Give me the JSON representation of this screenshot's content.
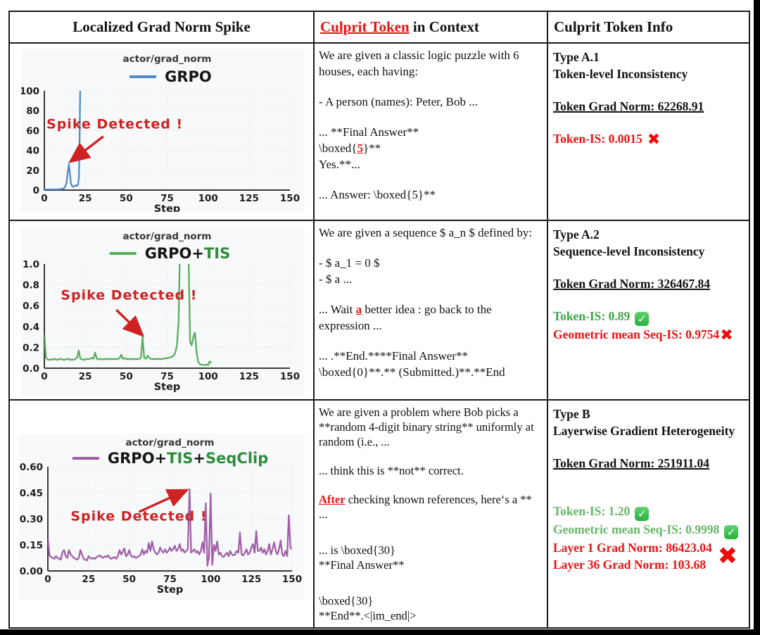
{
  "header": {
    "col1": "Localized Grad Norm Spike",
    "col2_highlight": "Culprit Token",
    "col2_rest": " in Context",
    "col3": "Culprit Token Info"
  },
  "colors": {
    "culprit_red": "#e81515",
    "info_red": "#ee1111",
    "info_green": "#3da44a",
    "info_green_light": "#67b667",
    "annotation_red": "#cf2222",
    "check_green": "#24b33b",
    "chart_bg": "#f8f9fb",
    "grid": "#dcdee3",
    "spine": "#3a3a3a",
    "blue_line": "#4f8bc9",
    "green_line": "#55b05a",
    "purple_line": "#a05fa8",
    "legend_green_text": "#2e8b3a"
  },
  "chart_data": [
    {
      "type": "line",
      "title": "actor/grad_norm",
      "xlabel": "Step",
      "xlim": [
        0,
        150
      ],
      "ylim": [
        0,
        100
      ],
      "xticks": [
        0,
        25,
        50,
        75,
        100,
        125,
        150
      ],
      "ytick_labels": [
        "0",
        "20",
        "40",
        "60",
        "80",
        "100"
      ],
      "yticks": [
        0,
        20,
        40,
        60,
        80,
        100
      ],
      "grid": true,
      "legend_position": "top-center",
      "line_color": "#4f8bc9",
      "legend": [
        {
          "t": "GRPO",
          "c": "#161616"
        }
      ],
      "x": [
        0,
        2,
        4,
        6,
        8,
        10,
        11,
        12,
        12.8,
        13.6,
        14.3,
        15,
        15.6,
        16.2,
        17,
        17.8,
        18.6,
        19.3,
        20,
        20.6,
        21.1,
        21.5,
        21.9,
        22.3
      ],
      "y": [
        0.6,
        0.6,
        0.6,
        0.7,
        0.8,
        1.0,
        1.3,
        2.0,
        3.5,
        8,
        18,
        26,
        17,
        7,
        3.8,
        3.2,
        4.2,
        5.0,
        4.2,
        5.5,
        12,
        45,
        105,
        106
      ],
      "annotation": {
        "text": "Spike Detected !",
        "text_x": 1.3,
        "text_y": 62,
        "arrow": {
          "x1": 36,
          "y1": 54,
          "x2": 17,
          "y2": 30
        }
      }
    },
    {
      "type": "line",
      "title": "actor/grad_norm",
      "xlabel": "Step",
      "xlim": [
        0,
        150
      ],
      "ylim": [
        0,
        1.0
      ],
      "xticks": [
        0,
        25,
        50,
        75,
        100,
        125,
        150
      ],
      "ytick_labels": [
        "0.0",
        "0.2",
        "0.4",
        "0.6",
        "0.8",
        "1.0"
      ],
      "yticks": [
        0,
        0.2,
        0.4,
        0.6,
        0.8,
        1.0
      ],
      "grid": true,
      "legend_position": "top-center",
      "line_color": "#55b05a",
      "legend": [
        {
          "t": "GRPO+",
          "c": "#161616"
        },
        {
          "t": "TIS",
          "c": "#2e8b3a"
        }
      ],
      "x_range": [
        0,
        102
      ],
      "y": [
        0.32,
        0.1,
        0.085,
        0.08,
        0.085,
        0.08,
        0.09,
        0.085,
        0.08,
        0.085,
        0.09,
        0.085,
        0.08,
        0.085,
        0.09,
        0.085,
        0.08,
        0.085,
        0.08,
        0.09,
        0.1,
        0.17,
        0.09,
        0.085,
        0.08,
        0.085,
        0.09,
        0.085,
        0.09,
        0.1,
        0.09,
        0.15,
        0.09,
        0.085,
        0.09,
        0.085,
        0.085,
        0.09,
        0.085,
        0.09,
        0.085,
        0.09,
        0.085,
        0.09,
        0.085,
        0.09,
        0.095,
        0.13,
        0.09,
        0.095,
        0.09,
        0.085,
        0.09,
        0.085,
        0.09,
        0.085,
        0.09,
        0.085,
        0.09,
        0.1,
        0.3,
        0.1,
        0.09,
        0.12,
        0.1,
        0.09,
        0.085,
        0.09,
        0.085,
        0.09,
        0.09,
        0.085,
        0.09,
        0.09,
        0.095,
        0.095,
        0.1,
        0.105,
        0.11,
        0.12,
        0.15,
        0.22,
        0.45,
        1.3,
        1.5,
        1.5,
        1.45,
        1.4,
        1.2,
        0.25,
        0.22,
        0.3,
        0.34,
        0.15,
        0.06,
        0.04,
        0.035,
        0.03,
        0.03,
        0.035,
        0.03,
        0.065,
        0.05
      ],
      "annotation": {
        "text": "Spike Detected !",
        "text_x": 10,
        "text_y": 0.66,
        "arrow": {
          "x1": 44,
          "y1": 0.56,
          "x2": 59,
          "y2": 0.33
        }
      }
    },
    {
      "type": "line",
      "title": "actor/grad_norm",
      "xlabel": "Step",
      "xlim": [
        0,
        150
      ],
      "ylim": [
        0,
        0.6
      ],
      "xticks": [
        0,
        25,
        50,
        75,
        100,
        125,
        150
      ],
      "ytick_labels": [
        "0.00",
        "0.15",
        "0.30",
        "0.45",
        "0.60"
      ],
      "yticks": [
        0,
        0.15,
        0.3,
        0.45,
        0.6
      ],
      "grid": true,
      "legend_position": "top-center",
      "line_color": "#a05fa8",
      "legend": [
        {
          "t": "GRPO+",
          "c": "#161616"
        },
        {
          "t": "TIS",
          "c": "#2e8b3a"
        },
        {
          "t": "+",
          "c": "#161616"
        },
        {
          "t": "SeqClip",
          "c": "#2e8b3a"
        }
      ],
      "x_range": [
        0,
        150
      ],
      "y": [
        0.19,
        0.09,
        0.08,
        0.075,
        0.07,
        0.085,
        0.075,
        0.07,
        0.065,
        0.11,
        0.12,
        0.085,
        0.075,
        0.12,
        0.095,
        0.085,
        0.075,
        0.07,
        0.065,
        0.075,
        0.12,
        0.095,
        0.07,
        0.065,
        0.06,
        0.085,
        0.075,
        0.07,
        0.075,
        0.07,
        0.08,
        0.085,
        0.09,
        0.08,
        0.075,
        0.085,
        0.08,
        0.09,
        0.075,
        0.07,
        0.075,
        0.08,
        0.07,
        0.085,
        0.12,
        0.095,
        0.11,
        0.13,
        0.085,
        0.095,
        0.12,
        0.09,
        0.08,
        0.085,
        0.075,
        0.08,
        0.085,
        0.095,
        0.125,
        0.095,
        0.115,
        0.105,
        0.16,
        0.115,
        0.17,
        0.125,
        0.105,
        0.095,
        0.105,
        0.135,
        0.115,
        0.105,
        0.125,
        0.105,
        0.115,
        0.135,
        0.115,
        0.125,
        0.145,
        0.115,
        0.125,
        0.155,
        0.115,
        0.125,
        0.105,
        0.115,
        0.125,
        0.47,
        0.105,
        0.115,
        0.125,
        0.105,
        0.115,
        0.095,
        0.115,
        0.165,
        0.105,
        0.39,
        0.03,
        0.08,
        0.445,
        0.035,
        0.15,
        0.115,
        0.17,
        0.095,
        0.105,
        0.085,
        0.08,
        0.095,
        0.105,
        0.085,
        0.115,
        0.095,
        0.09,
        0.095,
        0.115,
        0.105,
        0.22,
        0.095,
        0.09,
        0.105,
        0.125,
        0.095,
        0.105,
        0.135,
        0.155,
        0.105,
        0.23,
        0.115,
        0.115,
        0.135,
        0.105,
        0.125,
        0.095,
        0.115,
        0.155,
        0.095,
        0.125,
        0.165,
        0.115,
        0.095,
        0.125,
        0.175,
        0.095,
        0.085,
        0.115,
        0.085,
        0.32,
        0.135,
        0.125
      ],
      "annotation": {
        "text": "Spike Detected !",
        "text_x": 14,
        "text_y": 0.29,
        "arrow": {
          "x1": 56,
          "y1": 0.34,
          "x2": 84,
          "y2": 0.46
        }
      }
    }
  ],
  "rows": [
    {
      "context": [
        {
          "seg": [
            {
              "t": "We are given a classic logic puzzle with 6 houses, each having:"
            }
          ]
        },
        {
          "blank": true
        },
        {
          "seg": [
            {
              "t": "- A person (names): Peter, Bob ..."
            }
          ]
        },
        {
          "blank": true
        },
        {
          "seg": [
            {
              "t": "... **Final Answer**"
            }
          ]
        },
        {
          "seg": [
            {
              "t": "\\boxed{"
            },
            {
              "t": "5",
              "c": true
            },
            {
              "t": "}**"
            }
          ]
        },
        {
          "seg": [
            {
              "t": "Yes.**..."
            }
          ]
        },
        {
          "blank": true
        },
        {
          "seg": [
            {
              "t": "... Answer: \\boxed{5}**"
            }
          ]
        }
      ],
      "info": [
        {
          "t": "Type A.1",
          "s": "black"
        },
        {
          "t": "Token-level Inconsistency",
          "s": "black"
        },
        {
          "blank": true
        },
        {
          "t": "Token Grad Norm: 62268.91",
          "s": "ul"
        },
        {
          "blank": true
        },
        {
          "t": "Token-IS: 0.0015",
          "s": "red",
          "icon": "cross"
        }
      ]
    },
    {
      "context": [
        {
          "seg": [
            {
              "t": "We are given a sequence $ a_n $ defined by:"
            }
          ]
        },
        {
          "blank": true
        },
        {
          "seg": [
            {
              "t": "- $ a_1 = 0 $"
            }
          ]
        },
        {
          "seg": [
            {
              "t": "- $ a ..."
            }
          ]
        },
        {
          "blank": true
        },
        {
          "seg": [
            {
              "t": "... Wait "
            },
            {
              "t": "a",
              "c": true
            },
            {
              "t": " better idea : go back to the expression ..."
            }
          ]
        },
        {
          "blank": true
        },
        {
          "seg": [
            {
              "t": "... .**End.****Final Answer**"
            }
          ]
        },
        {
          "seg": [
            {
              "t": "\\boxed{0}**.** (Submitted.)**.**End"
            }
          ]
        }
      ],
      "info": [
        {
          "t": "Type A.2",
          "s": "black"
        },
        {
          "t": "Sequence-level Inconsistency",
          "s": "black"
        },
        {
          "blank": true
        },
        {
          "t": "Token Grad Norm: 326467.84",
          "s": "ul"
        },
        {
          "blank": true
        },
        {
          "t": "Token-IS: 0.89",
          "s": "green",
          "icon": "check"
        },
        {
          "t": "Geometric mean Seq-IS: 0.9754",
          "s": "red",
          "icon": "cross",
          "tight": true
        }
      ]
    },
    {
      "context": [
        {
          "seg": [
            {
              "t": "We are given a problem where Bob picks a **random 4-digit binary string** uniformly at random (i.e., ..."
            }
          ]
        },
        {
          "blank": true
        },
        {
          "seg": [
            {
              "t": "... think this is **not** correct."
            }
          ]
        },
        {
          "blank": true
        },
        {
          "seg": [
            {
              "t": "After",
              "c": true
            },
            {
              "t": " checking known references, here‘s a ** ..."
            }
          ]
        },
        {
          "blank": true
        },
        {
          "blank": "half"
        },
        {
          "seg": [
            {
              "t": "...  is \\boxed{30}"
            }
          ]
        },
        {
          "seg": [
            {
              "t": "**Final Answer**"
            }
          ]
        },
        {
          "blank": true
        },
        {
          "blank": "half"
        },
        {
          "seg": [
            {
              "t": "\\boxed{30}"
            }
          ]
        },
        {
          "seg": [
            {
              "t": "**End**.<|im_end|>"
            }
          ]
        }
      ],
      "info": [
        {
          "t": "Type B",
          "s": "black"
        },
        {
          "t": "Layerwise Gradient Heterogeneity",
          "s": "black"
        },
        {
          "blank": true
        },
        {
          "t": "Token Grad Norm: 251911.04",
          "s": "ul"
        },
        {
          "blank": true
        },
        {
          "blank": true
        },
        {
          "t": "Token-IS: 1.20",
          "s": "green2",
          "icon": "check"
        },
        {
          "t": "Geometric mean Seq-IS: 0.9998",
          "s": "green2",
          "icon": "check"
        },
        {
          "group": [
            "Layer 1 Grad Norm: 86423.04",
            "Layer 36 Grad Norm: 103.68"
          ],
          "s": "red",
          "icon": "crossbig"
        }
      ]
    }
  ]
}
